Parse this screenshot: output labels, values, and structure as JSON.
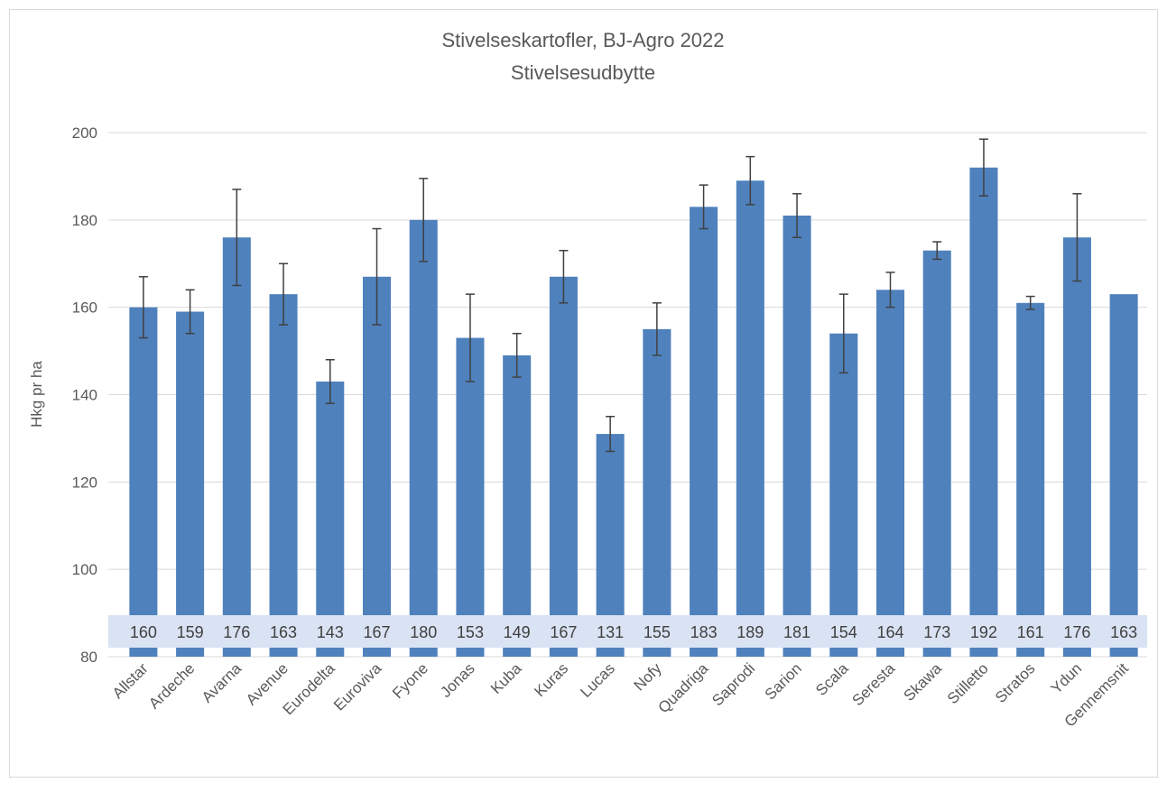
{
  "chart_data": {
    "type": "bar",
    "title": "Stivelseskartofler, BJ-Agro 2022",
    "subtitle": "Stivelsesudbytte",
    "y_label": "Hkg pr ha",
    "categories": [
      "Allstar",
      "Ardeche",
      "Avarna",
      "Avenue",
      "Eurodelta",
      "Euroviva",
      "Fyone",
      "Jonas",
      "Kuba",
      "Kuras",
      "Lucas",
      "Nofy",
      "Quadriga",
      "Saprodi",
      "Sarion",
      "Scala",
      "Seresta",
      "Skawa",
      "Stilletto",
      "Stratos",
      "Ydun",
      "Gennemsnit"
    ],
    "values": [
      160,
      159,
      176,
      163,
      143,
      167,
      180,
      153,
      149,
      167,
      131,
      155,
      183,
      189,
      181,
      154,
      164,
      173,
      192,
      161,
      176,
      163
    ],
    "errors": [
      7,
      5,
      11,
      7,
      5,
      11,
      9.5,
      10,
      5,
      6,
      4,
      6,
      5,
      5.5,
      5,
      9,
      4,
      2,
      6.5,
      1.5,
      10,
      null
    ],
    "color": "#4f81bd",
    "error_color": "#404040",
    "ylim": [
      80,
      200
    ],
    "yticks": [
      80,
      100,
      120,
      140,
      160,
      180,
      200
    ],
    "grid": true
  }
}
